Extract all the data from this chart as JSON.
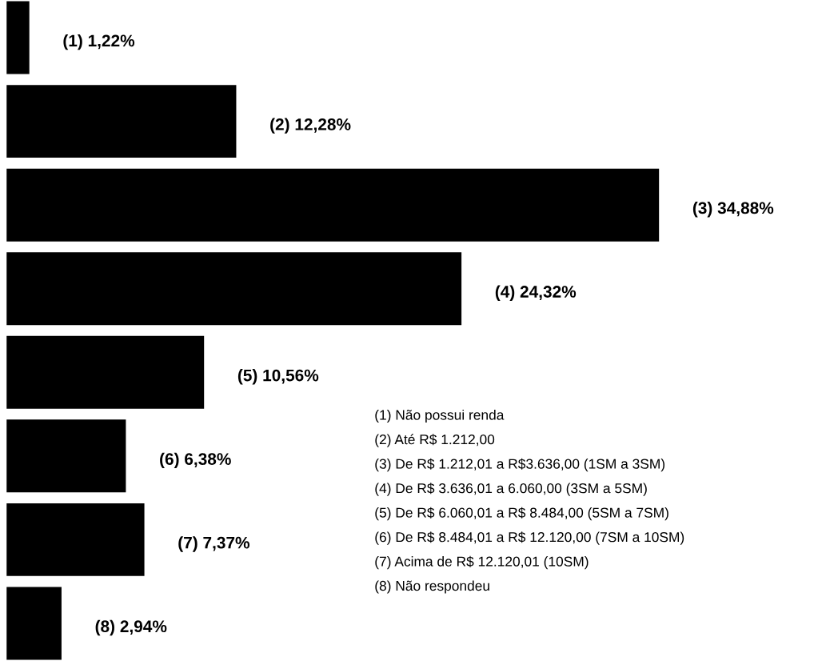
{
  "chart_data": {
    "type": "bar",
    "orientation": "horizontal",
    "categories": [
      null,
      null,
      null,
      null,
      null,
      null,
      null,
      null
    ],
    "values": [
      1.22,
      12.28,
      34.88,
      24.32,
      10.56,
      6.38,
      7.37,
      2.94
    ],
    "value_labels": [
      "(1) 1,22%",
      "(2) 12,28%",
      "(3) 34,88%",
      "(4) 24,32%",
      "(5) 10,56%",
      "(6) 6,38%",
      "(7) 7,37%",
      "(8) 2,94%"
    ],
    "color": "#000000",
    "annotations": [
      "(1) Não possui renda",
      "(2) Até R$ 1.212,00",
      "(3) De R$ 1.212,01 a R$3.636,00 (1SM a 3SM)",
      "(4) De R$ 3.636,01 a 6.060,00 (3SM a 5SM)",
      "(5) De R$ 6.060,01 a R$ 8.484,00 (5SM a 7SM)",
      "(6) De R$ 8.484,01 a R$ 12.120,00 (7SM a 10SM)",
      "(7) Acima de R$ 12.120,01 (10SM)",
      "(8) Não respondeu"
    ]
  }
}
